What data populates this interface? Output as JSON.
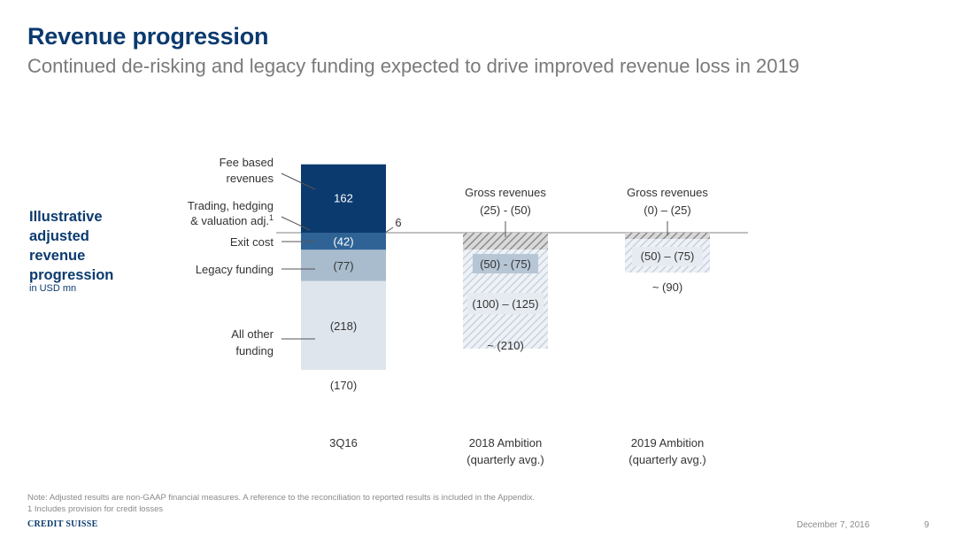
{
  "header": {
    "title": "Revenue progression",
    "subtitle": "Continued de-risking and legacy funding expected to drive improved revenue loss in 2019"
  },
  "side": {
    "title_lines": [
      "Illustrative",
      "adjusted",
      "revenue",
      "progression"
    ],
    "unit": "in USD mn"
  },
  "chart_data": {
    "type": "bar",
    "categories": [
      "3Q16",
      "2018 Ambition\n(quarterly avg.)",
      "2019 Ambition\n(quarterly avg.)"
    ],
    "ylabel": "",
    "columns": [
      {
        "category": "3Q16",
        "total_label": "(170)",
        "segments": [
          {
            "name": "Fee based revenues",
            "value": 162,
            "label": "162",
            "color": "#0b3a6e"
          },
          {
            "name": "Trading, hedging & valuation adj.",
            "value": 6,
            "label": "6",
            "color": "#0b3a6e"
          },
          {
            "name": "Exit cost",
            "value": -42,
            "label": "(42)",
            "color": "#2f6396"
          },
          {
            "name": "Legacy funding",
            "value": -77,
            "label": "(77)",
            "color": "#a9bccd"
          },
          {
            "name": "All other funding",
            "value": -218,
            "label": "(218)",
            "color": "#dfe5ec"
          }
        ]
      },
      {
        "category": "2018 Ambition (quarterly avg.)",
        "total_label": "~ (210)",
        "top_label_line1": "Gross revenues",
        "top_label_line2": "(25) - (50)",
        "segments": [
          {
            "name": "Gross revenues",
            "range": [
              -25,
              -50
            ],
            "label": "(25) - (50)"
          },
          {
            "name": "Legacy funding",
            "range": [
              -50,
              -75
            ],
            "label": "(50) - (75)"
          },
          {
            "name": "All other funding",
            "range": [
              -100,
              -125
            ],
            "label": "(100) – (125)"
          }
        ]
      },
      {
        "category": "2019 Ambition (quarterly avg.)",
        "total_label": "~ (90)",
        "top_label_line1": "Gross revenues",
        "top_label_line2": "(0) – (25)",
        "segments": [
          {
            "name": "Gross revenues",
            "range": [
              0,
              -25
            ],
            "label": "(0) – (25)"
          },
          {
            "name": "Legacy funding",
            "range": [
              -50,
              -75
            ],
            "label": "(50) – (75)"
          }
        ]
      }
    ],
    "left_labels": [
      {
        "lines": [
          "Fee based",
          "revenues"
        ]
      },
      {
        "lines": [
          "Trading, hedging",
          "& valuation adj."
        ],
        "superscript": "1"
      },
      {
        "lines": [
          "Exit cost"
        ]
      },
      {
        "lines": [
          "Legacy funding"
        ]
      },
      {
        "lines": [
          "All other",
          "funding"
        ]
      }
    ],
    "xlabels": [
      {
        "lines": [
          "3Q16"
        ]
      },
      {
        "lines": [
          "2018 Ambition",
          "(quarterly avg.)"
        ]
      },
      {
        "lines": [
          "2019 Ambition",
          "(quarterly avg.)"
        ]
      }
    ]
  },
  "notes": {
    "line1": "Note: Adjusted results are non-GAAP financial measures. A reference to the reconciliation to reported results is included in the Appendix.",
    "line2": "1 Includes provision for credit losses"
  },
  "footer": {
    "logo": "CREDIT SUISSE",
    "date": "December 7, 2016",
    "page": "9"
  },
  "colors": {
    "navy": "#0b3a6e",
    "mid_blue": "#2f6396",
    "light_blue": "#a9bccd",
    "pale": "#dfe5ec",
    "hatch_dark": "#9a9a9a",
    "hatch_light": "#c8d3de"
  }
}
